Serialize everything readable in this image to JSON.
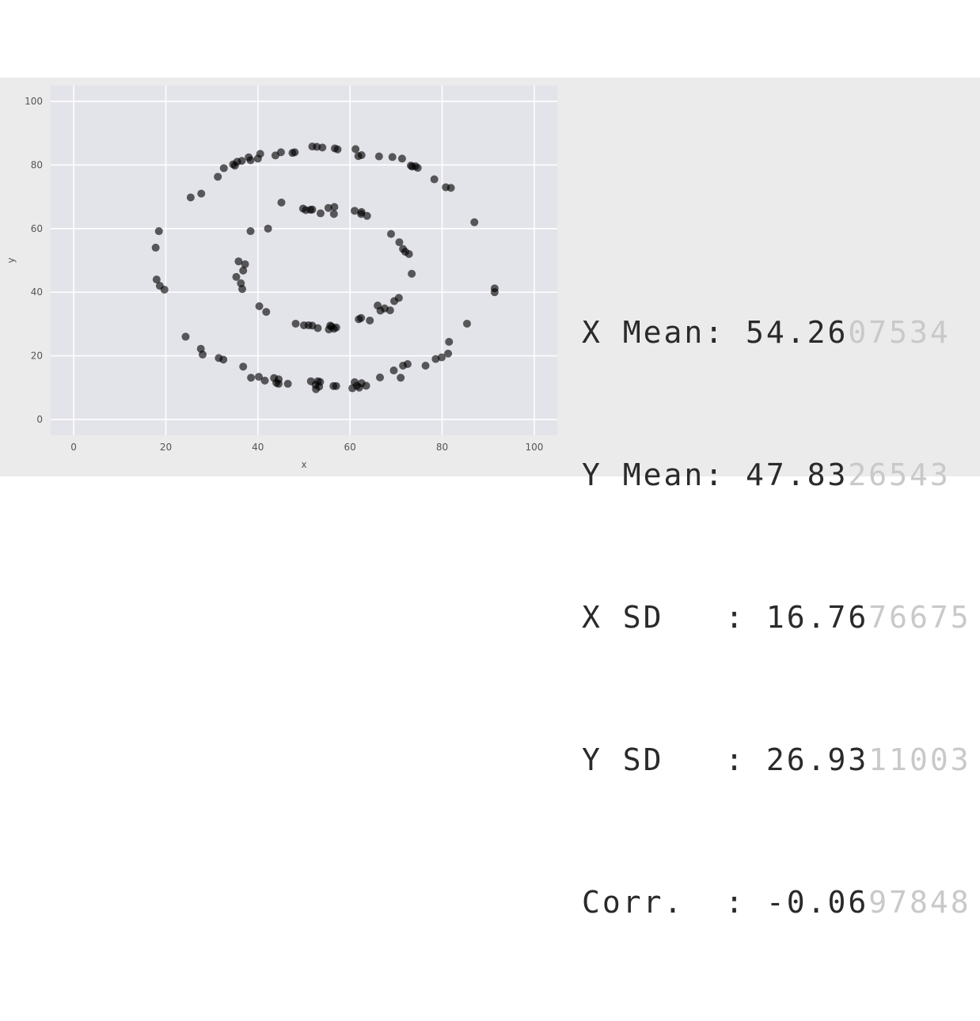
{
  "chart_data": {
    "type": "scatter",
    "xlabel": "x",
    "ylabel": "y",
    "xlim": [
      -5,
      105
    ],
    "ylim": [
      -5,
      105
    ],
    "xticks": [
      0,
      20,
      40,
      60,
      80,
      100
    ],
    "yticks": [
      0,
      20,
      40,
      60,
      80,
      100
    ],
    "grid": true,
    "points": [
      [
        18.5,
        59.2
      ],
      [
        17.8,
        54.0
      ],
      [
        18.0,
        44.0
      ],
      [
        18.7,
        42.0
      ],
      [
        19.7,
        40.8
      ],
      [
        24.3,
        26.0
      ],
      [
        27.6,
        22.2
      ],
      [
        28.0,
        20.4
      ],
      [
        31.5,
        19.3
      ],
      [
        32.5,
        18.8
      ],
      [
        36.8,
        16.6
      ],
      [
        38.5,
        13.1
      ],
      [
        40.2,
        13.4
      ],
      [
        41.5,
        12.2
      ],
      [
        43.5,
        13.0
      ],
      [
        44.0,
        11.5
      ],
      [
        44.5,
        11.2
      ],
      [
        44.5,
        12.6
      ],
      [
        46.5,
        11.2
      ],
      [
        51.5,
        12.0
      ],
      [
        52.5,
        10.9
      ],
      [
        52.6,
        9.5
      ],
      [
        53.0,
        12.0
      ],
      [
        53.3,
        10.3
      ],
      [
        53.5,
        11.8
      ],
      [
        56.4,
        10.5
      ],
      [
        57.0,
        10.5
      ],
      [
        60.5,
        9.8
      ],
      [
        61.0,
        11.7
      ],
      [
        61.5,
        10.6
      ],
      [
        62.0,
        10.0
      ],
      [
        62.5,
        11.4
      ],
      [
        63.5,
        10.6
      ],
      [
        66.5,
        13.2
      ],
      [
        69.5,
        15.4
      ],
      [
        71.0,
        13.1
      ],
      [
        71.5,
        16.9
      ],
      [
        72.5,
        17.4
      ],
      [
        76.4,
        16.9
      ],
      [
        78.6,
        19.0
      ],
      [
        79.9,
        19.5
      ],
      [
        81.3,
        20.7
      ],
      [
        81.5,
        24.4
      ],
      [
        85.4,
        30.1
      ],
      [
        91.4,
        41.2
      ],
      [
        91.4,
        40.0
      ],
      [
        87.0,
        62.0
      ],
      [
        81.9,
        72.8
      ],
      [
        80.8,
        73.0
      ],
      [
        78.3,
        75.5
      ],
      [
        74.7,
        79.1
      ],
      [
        74.2,
        79.6
      ],
      [
        73.5,
        79.5
      ],
      [
        73.2,
        79.8
      ],
      [
        71.3,
        82.0
      ],
      [
        69.2,
        82.5
      ],
      [
        66.3,
        82.7
      ],
      [
        62.5,
        83.1
      ],
      [
        61.8,
        82.8
      ],
      [
        61.2,
        85.0
      ],
      [
        57.3,
        84.9
      ],
      [
        56.7,
        85.2
      ],
      [
        54.0,
        85.5
      ],
      [
        52.8,
        85.7
      ],
      [
        51.8,
        85.8
      ],
      [
        48.0,
        84.0
      ],
      [
        47.5,
        83.8
      ],
      [
        45.0,
        84.0
      ],
      [
        43.8,
        83.0
      ],
      [
        40.5,
        83.5
      ],
      [
        40.0,
        82.0
      ],
      [
        38.4,
        81.5
      ],
      [
        38.0,
        82.4
      ],
      [
        36.5,
        81.3
      ],
      [
        35.5,
        81.0
      ],
      [
        35.0,
        79.8
      ],
      [
        34.6,
        80.2
      ],
      [
        32.6,
        79.0
      ],
      [
        31.3,
        76.3
      ],
      [
        27.7,
        71.0
      ],
      [
        25.4,
        69.8
      ],
      [
        45.1,
        68.2
      ],
      [
        49.8,
        66.3
      ],
      [
        50.4,
        65.8
      ],
      [
        51.4,
        65.9
      ],
      [
        51.8,
        66.0
      ],
      [
        53.6,
        64.8
      ],
      [
        55.3,
        66.5
      ],
      [
        56.5,
        64.6
      ],
      [
        56.6,
        66.8
      ],
      [
        61.0,
        65.6
      ],
      [
        62.4,
        64.6
      ],
      [
        62.5,
        65.2
      ],
      [
        63.7,
        64.0
      ],
      [
        68.9,
        58.3
      ],
      [
        70.7,
        55.7
      ],
      [
        71.5,
        53.6
      ],
      [
        72.0,
        52.7
      ],
      [
        72.8,
        52.0
      ],
      [
        73.4,
        45.8
      ],
      [
        70.6,
        38.2
      ],
      [
        69.6,
        37.2
      ],
      [
        68.7,
        34.3
      ],
      [
        67.5,
        34.9
      ],
      [
        66.6,
        34.2
      ],
      [
        66.0,
        35.8
      ],
      [
        64.3,
        31.1
      ],
      [
        62.4,
        31.9
      ],
      [
        61.9,
        31.5
      ],
      [
        57.0,
        28.9
      ],
      [
        56.5,
        28.5
      ],
      [
        56.0,
        29.2
      ],
      [
        55.7,
        29.5
      ],
      [
        55.4,
        28.3
      ],
      [
        53.0,
        28.7
      ],
      [
        51.8,
        29.5
      ],
      [
        51.0,
        29.6
      ],
      [
        50.0,
        29.6
      ],
      [
        48.2,
        30.1
      ],
      [
        41.8,
        33.8
      ],
      [
        40.3,
        35.6
      ],
      [
        36.6,
        41.0
      ],
      [
        36.3,
        42.8
      ],
      [
        35.3,
        44.8
      ],
      [
        36.8,
        46.8
      ],
      [
        37.2,
        48.8
      ],
      [
        35.8,
        49.7
      ],
      [
        38.4,
        59.2
      ],
      [
        42.2,
        60.0
      ]
    ]
  },
  "stats": [
    {
      "label": "X Mean: ",
      "shown": "54.26",
      "faded": "07534"
    },
    {
      "label": "Y Mean: ",
      "shown": "47.83",
      "faded": "26543"
    },
    {
      "label": "X SD   : ",
      "shown": "16.76",
      "faded": "76675"
    },
    {
      "label": "Y SD   : ",
      "shown": "26.93",
      "faded": "11003"
    },
    {
      "label": "Corr.  : ",
      "shown": "-0.06",
      "faded": "97848"
    }
  ]
}
